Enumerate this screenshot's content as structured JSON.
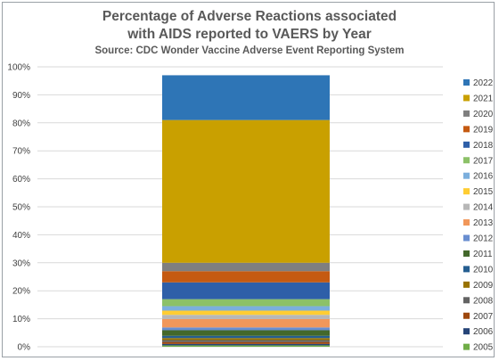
{
  "chart_data": {
    "type": "bar",
    "stacked": true,
    "title": "Percentage of Adverse Reactions associated",
    "title_line2": "with AIDS reported to VAERS by Year",
    "subtitle": "Source: CDC Wonder Vaccine Adverse Event Reporting System",
    "xlabel": "",
    "ylabel": "",
    "ylim": [
      0,
      100
    ],
    "y_ticks": [
      "0%",
      "10%",
      "20%",
      "30%",
      "40%",
      "50%",
      "60%",
      "70%",
      "80%",
      "90%",
      "100%"
    ],
    "grid": true,
    "legend_position": "right",
    "series": [
      {
        "name": "2005",
        "value": 0.5,
        "color": "#70ad47"
      },
      {
        "name": "2006",
        "value": 0.5,
        "color": "#264478"
      },
      {
        "name": "2007",
        "value": 0.7,
        "color": "#9e480e"
      },
      {
        "name": "2008",
        "value": 0.7,
        "color": "#636363"
      },
      {
        "name": "2009",
        "value": 0.7,
        "color": "#997300"
      },
      {
        "name": "2010",
        "value": 0.8,
        "color": "#255e91"
      },
      {
        "name": "2011",
        "value": 2.0,
        "color": "#43682b"
      },
      {
        "name": "2012",
        "value": 1.0,
        "color": "#698ed0"
      },
      {
        "name": "2013",
        "value": 3.0,
        "color": "#f1975a"
      },
      {
        "name": "2014",
        "value": 1.5,
        "color": "#b7b7b7"
      },
      {
        "name": "2015",
        "value": 1.5,
        "color": "#ffcd33"
      },
      {
        "name": "2016",
        "value": 1.6,
        "color": "#7cafdd"
      },
      {
        "name": "2017",
        "value": 2.5,
        "color": "#8cc168"
      },
      {
        "name": "2018",
        "value": 6.0,
        "color": "#2e5fa8"
      },
      {
        "name": "2019",
        "value": 4.0,
        "color": "#c55a11"
      },
      {
        "name": "2020",
        "value": 3.0,
        "color": "#7f7f7f"
      },
      {
        "name": "2021",
        "value": 51.0,
        "color": "#c9a000"
      },
      {
        "name": "2022",
        "value": 16.0,
        "color": "#2e75b6"
      }
    ]
  }
}
